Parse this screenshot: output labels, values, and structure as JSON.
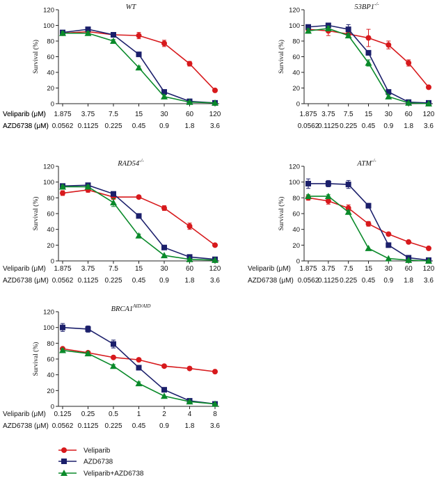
{
  "chart_data": [
    {
      "type": "line",
      "title": "WT",
      "title_sup": "",
      "ylabel": "Survival (%)",
      "ylim": [
        0,
        120
      ],
      "yticks": [
        0,
        20,
        40,
        60,
        80,
        100,
        120
      ],
      "rows": [
        {
          "label": "Veliparib (μM)",
          "values": [
            "1.875",
            "3.75",
            "7.5",
            "15",
            "30",
            "60",
            "120"
          ]
        },
        {
          "label": "AZD6738 (μM)",
          "values": [
            "0.0562",
            "0.1125",
            "0.225",
            "0.45",
            "0.9",
            "1.8",
            "3.6"
          ]
        }
      ],
      "series": [
        {
          "name": "Veliparib",
          "values": [
            90,
            92,
            88,
            87,
            77,
            51,
            17
          ],
          "errors": [
            2,
            2,
            2,
            4,
            4,
            3,
            1
          ]
        },
        {
          "name": "AZD6738",
          "values": [
            91,
            95,
            88,
            63,
            15,
            3,
            1
          ],
          "errors": [
            2,
            2,
            2,
            2,
            2,
            1,
            1
          ]
        },
        {
          "name": "Veliparib+AZD6738",
          "values": [
            90,
            90,
            80,
            46,
            9,
            2,
            1
          ],
          "errors": [
            2,
            2,
            2,
            2,
            2,
            1,
            1
          ]
        }
      ]
    },
    {
      "type": "line",
      "title": "53BP1",
      "title_sup": "-/-",
      "ylabel": "Survival (%)",
      "ylim": [
        0,
        120
      ],
      "yticks": [
        0,
        20,
        40,
        60,
        80,
        100,
        120
      ],
      "rows": [
        {
          "label": "Veliparib (μM)",
          "values": [
            "1.875",
            "3.75",
            "7.5",
            "15",
            "30",
            "60",
            "120"
          ]
        },
        {
          "label": "AZD6738 (μM)",
          "values": [
            "0.0562",
            "0.1125",
            "0.225",
            "0.45",
            "0.9",
            "1.8",
            "3.6"
          ]
        }
      ],
      "series": [
        {
          "name": "Veliparib",
          "values": [
            95,
            93,
            89,
            84,
            75,
            52,
            21
          ],
          "errors": [
            3,
            6,
            3,
            11,
            5,
            4,
            1
          ]
        },
        {
          "name": "AZD6738",
          "values": [
            98,
            100,
            95,
            65,
            15,
            2,
            1
          ],
          "errors": [
            2,
            3,
            6,
            3,
            2,
            1,
            1
          ]
        },
        {
          "name": "Veliparib+AZD6738",
          "values": [
            93,
            96,
            87,
            52,
            9,
            1,
            0
          ],
          "errors": [
            3,
            3,
            3,
            4,
            2,
            1,
            1
          ]
        }
      ]
    },
    {
      "type": "line",
      "title": "RAD54",
      "title_sup": "-/-",
      "ylabel": "Survival (%)",
      "ylim": [
        0,
        120
      ],
      "yticks": [
        0,
        20,
        40,
        60,
        80,
        100,
        120
      ],
      "rows": [
        {
          "label": "Veliparib (μM)",
          "values": [
            "1.875",
            "3.75",
            "7.5",
            "15",
            "30",
            "60",
            "120"
          ]
        },
        {
          "label": "AZD6738 (μM)",
          "values": [
            "0.0562",
            "0.1125",
            "0.225",
            "0.45",
            "0.9",
            "1.8",
            "3.6"
          ]
        }
      ],
      "series": [
        {
          "name": "Veliparib",
          "values": [
            86,
            90,
            81,
            81,
            67,
            44,
            20
          ],
          "errors": [
            3,
            3,
            3,
            2,
            3,
            4,
            1
          ]
        },
        {
          "name": "AZD6738",
          "values": [
            95,
            96,
            85,
            57,
            17,
            5,
            2
          ],
          "errors": [
            2,
            2,
            2,
            2,
            2,
            1,
            1
          ]
        },
        {
          "name": "Veliparib+AZD6738",
          "values": [
            94,
            94,
            74,
            32,
            7,
            2,
            1
          ],
          "errors": [
            2,
            2,
            5,
            2,
            1,
            1,
            1
          ]
        }
      ]
    },
    {
      "type": "line",
      "title": "ATM",
      "title_sup": "-/-",
      "ylabel": "Survival (%)",
      "ylim": [
        0,
        120
      ],
      "yticks": [
        0,
        20,
        40,
        60,
        80,
        100,
        120
      ],
      "rows": [
        {
          "label": "Veliparib (μM)",
          "values": [
            "1.875",
            "3.75",
            "7.5",
            "15",
            "30",
            "60",
            "120"
          ]
        },
        {
          "label": "AZD6738 (μM)",
          "values": [
            "0.0562",
            "0.1125",
            "0.225",
            "0.45",
            "0.9",
            "1.8",
            "3.6"
          ]
        }
      ],
      "series": [
        {
          "name": "Veliparib",
          "values": [
            80,
            76,
            67,
            47,
            34,
            24,
            16
          ],
          "errors": [
            3,
            4,
            4,
            3,
            2,
            1,
            1
          ]
        },
        {
          "name": "AZD6738",
          "values": [
            98,
            98,
            97,
            70,
            20,
            4,
            1
          ],
          "errors": [
            6,
            4,
            5,
            3,
            2,
            1,
            1
          ]
        },
        {
          "name": "Veliparib+AZD6738",
          "values": [
            82,
            82,
            62,
            16,
            3,
            1,
            0
          ],
          "errors": [
            2,
            2,
            2,
            1,
            1,
            1,
            1
          ]
        }
      ]
    },
    {
      "type": "line",
      "title": "BRCA1",
      "title_sup": "AID/AID",
      "ylabel": "Survival (%)",
      "ylim": [
        0,
        120
      ],
      "yticks": [
        0,
        20,
        40,
        60,
        80,
        100,
        120
      ],
      "rows": [
        {
          "label": "Veliparib (μM)",
          "values": [
            "0.125",
            "0.25",
            "0.5",
            "1",
            "2",
            "4",
            "8"
          ]
        },
        {
          "label": "AZD6738 (μM)",
          "values": [
            "0.0562",
            "0.1125",
            "0.225",
            "0.45",
            "0.9",
            "1.8",
            "3.6"
          ]
        }
      ],
      "series": [
        {
          "name": "Veliparib",
          "values": [
            73,
            68,
            62,
            59,
            51,
            48,
            44
          ],
          "errors": [
            2,
            2,
            2,
            2,
            1,
            1,
            1
          ]
        },
        {
          "name": "AZD6738",
          "values": [
            100,
            98,
            79,
            49,
            21,
            7,
            3
          ],
          "errors": [
            5,
            4,
            5,
            2,
            2,
            1,
            1
          ]
        },
        {
          "name": "Veliparib+AZD6738",
          "values": [
            71,
            67,
            51,
            29,
            13,
            6,
            3
          ],
          "errors": [
            2,
            2,
            2,
            2,
            1,
            1,
            1
          ]
        }
      ]
    }
  ],
  "legend": [
    {
      "name": "Veliparib",
      "color": "#d7191c",
      "marker": "circle"
    },
    {
      "name": "AZD6738",
      "color": "#1b1f6b",
      "marker": "square"
    },
    {
      "name": "Veliparib+AZD6738",
      "color": "#0a8a2a",
      "marker": "triangle"
    }
  ]
}
